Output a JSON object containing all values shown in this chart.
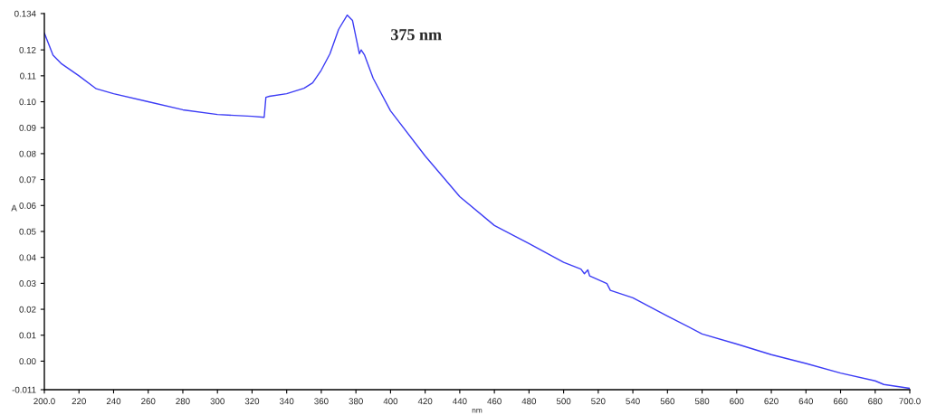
{
  "chart_data": {
    "type": "line",
    "xlabel": "nm",
    "ylabel": "A",
    "annotations": [
      "375 nm"
    ],
    "x": [
      200,
      205,
      210,
      220,
      230,
      240,
      260,
      280,
      300,
      320,
      327,
      328,
      330,
      340,
      350,
      355,
      360,
      365,
      370,
      375,
      378,
      382,
      383,
      385,
      390,
      400,
      420,
      440,
      460,
      480,
      500,
      510,
      512,
      514,
      515,
      525,
      527,
      540,
      560,
      580,
      600,
      620,
      640,
      660,
      680,
      685,
      700
    ],
    "series": [
      {
        "color": "#3c3cf5",
        "values": [
          0.1265,
          0.118,
          0.1146,
          0.11,
          0.105,
          0.1031,
          0.1,
          0.0969,
          0.0951,
          0.0944,
          0.094,
          0.1017,
          0.1021,
          0.1031,
          0.1052,
          0.1073,
          0.1122,
          0.1185,
          0.1279,
          0.1334,
          0.1314,
          0.1185,
          0.12,
          0.118,
          0.109,
          0.0965,
          0.0791,
          0.0634,
          0.0523,
          0.0453,
          0.0381,
          0.0355,
          0.0337,
          0.0352,
          0.0329,
          0.0299,
          0.0273,
          0.0244,
          0.0174,
          0.0105,
          0.0066,
          0.0025,
          -0.0009,
          -0.0046,
          -0.0076,
          -0.009,
          -0.0105
        ]
      }
    ],
    "xlim": [
      200,
      700
    ],
    "ylim": [
      -0.011,
      0.134
    ],
    "xticks": [
      {
        "value": 200,
        "label": "200.0"
      },
      220,
      240,
      260,
      280,
      300,
      320,
      340,
      360,
      380,
      400,
      420,
      440,
      460,
      480,
      500,
      520,
      540,
      560,
      580,
      600,
      620,
      640,
      660,
      680,
      {
        "value": 700,
        "label": "700.0"
      }
    ],
    "yticks": [
      {
        "value": -0.011,
        "label": "-0.011"
      },
      {
        "value": 0,
        "label": "0.00"
      },
      {
        "value": 0.01,
        "label": "0.01"
      },
      {
        "value": 0.02,
        "label": "0.02"
      },
      {
        "value": 0.03,
        "label": "0.03"
      },
      {
        "value": 0.04,
        "label": "0.04"
      },
      {
        "value": 0.05,
        "label": "0.05"
      },
      {
        "value": 0.06,
        "label": "0.06"
      },
      {
        "value": 0.07,
        "label": "0.07"
      },
      {
        "value": 0.08,
        "label": "0.08"
      },
      {
        "value": 0.09,
        "label": "0.09"
      },
      {
        "value": 0.1,
        "label": "0.10"
      },
      {
        "value": 0.11,
        "label": "0.11"
      },
      {
        "value": 0.12,
        "label": "0.12"
      },
      {
        "value": 0.134,
        "label": "0.134"
      }
    ],
    "grid": false,
    "legend": false
  }
}
